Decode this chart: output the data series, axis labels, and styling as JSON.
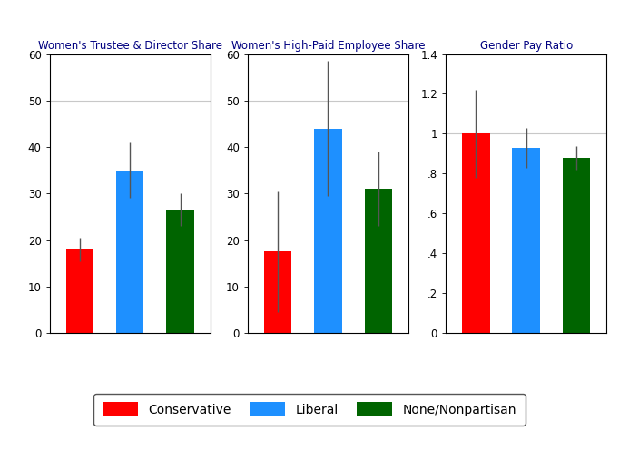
{
  "panels": [
    {
      "title": "Women's Trustee & Director Share",
      "ylim": [
        0,
        60
      ],
      "yticks": [
        0,
        10,
        20,
        30,
        40,
        50,
        60
      ],
      "hline": 50,
      "bars": [
        {
          "label": "Conservative",
          "value": 18,
          "err_low": 2.5,
          "err_high": 2.5,
          "color": "#FF0000"
        },
        {
          "label": "Liberal",
          "value": 35,
          "err_low": 6.0,
          "err_high": 6.0,
          "color": "#1E90FF"
        },
        {
          "label": "None/Nonpartisan",
          "value": 26.5,
          "err_low": 3.5,
          "err_high": 3.5,
          "color": "#006400"
        }
      ]
    },
    {
      "title": "Women's High-Paid Employee Share",
      "ylim": [
        0,
        60
      ],
      "yticks": [
        0,
        10,
        20,
        30,
        40,
        50,
        60
      ],
      "hline": 50,
      "bars": [
        {
          "label": "Conservative",
          "value": 17.5,
          "err_low": 13.0,
          "err_high": 13.0,
          "color": "#FF0000"
        },
        {
          "label": "Liberal",
          "value": 44,
          "err_low": 14.5,
          "err_high": 14.5,
          "color": "#1E90FF"
        },
        {
          "label": "None/Nonpartisan",
          "value": 31,
          "err_low": 8.0,
          "err_high": 8.0,
          "color": "#006400"
        }
      ]
    },
    {
      "title": "Gender Pay Ratio",
      "ylim": [
        0,
        1.4
      ],
      "yticks": [
        0,
        0.2,
        0.4,
        0.6,
        0.8,
        1.0,
        1.2,
        1.4
      ],
      "yticklabels": [
        "0",
        ".2",
        ".4",
        ".6",
        ".8",
        "1",
        "1.2",
        "1.4"
      ],
      "hline": 1.0,
      "bars": [
        {
          "label": "Conservative",
          "value": 1.0,
          "err_low": 0.22,
          "err_high": 0.22,
          "color": "#FF0000"
        },
        {
          "label": "Liberal",
          "value": 0.93,
          "err_low": 0.1,
          "err_high": 0.1,
          "color": "#1E90FF"
        },
        {
          "label": "None/Nonpartisan",
          "value": 0.88,
          "err_low": 0.06,
          "err_high": 0.06,
          "color": "#006400"
        }
      ]
    }
  ],
  "legend": [
    {
      "label": "Conservative",
      "color": "#FF0000"
    },
    {
      "label": "Liberal",
      "color": "#1E90FF"
    },
    {
      "label": "None/Nonpartisan",
      "color": "#006400"
    }
  ],
  "bar_width": 0.55,
  "bar_positions": [
    1,
    2,
    3
  ],
  "error_color": "#555555",
  "title_fontsize": 8.5,
  "tick_fontsize": 8.5,
  "legend_fontsize": 10,
  "title_color": "#000080",
  "figure_bg": "#FFFFFF",
  "axes_bg": "#FFFFFF",
  "hline_color": "#C8C8C8"
}
